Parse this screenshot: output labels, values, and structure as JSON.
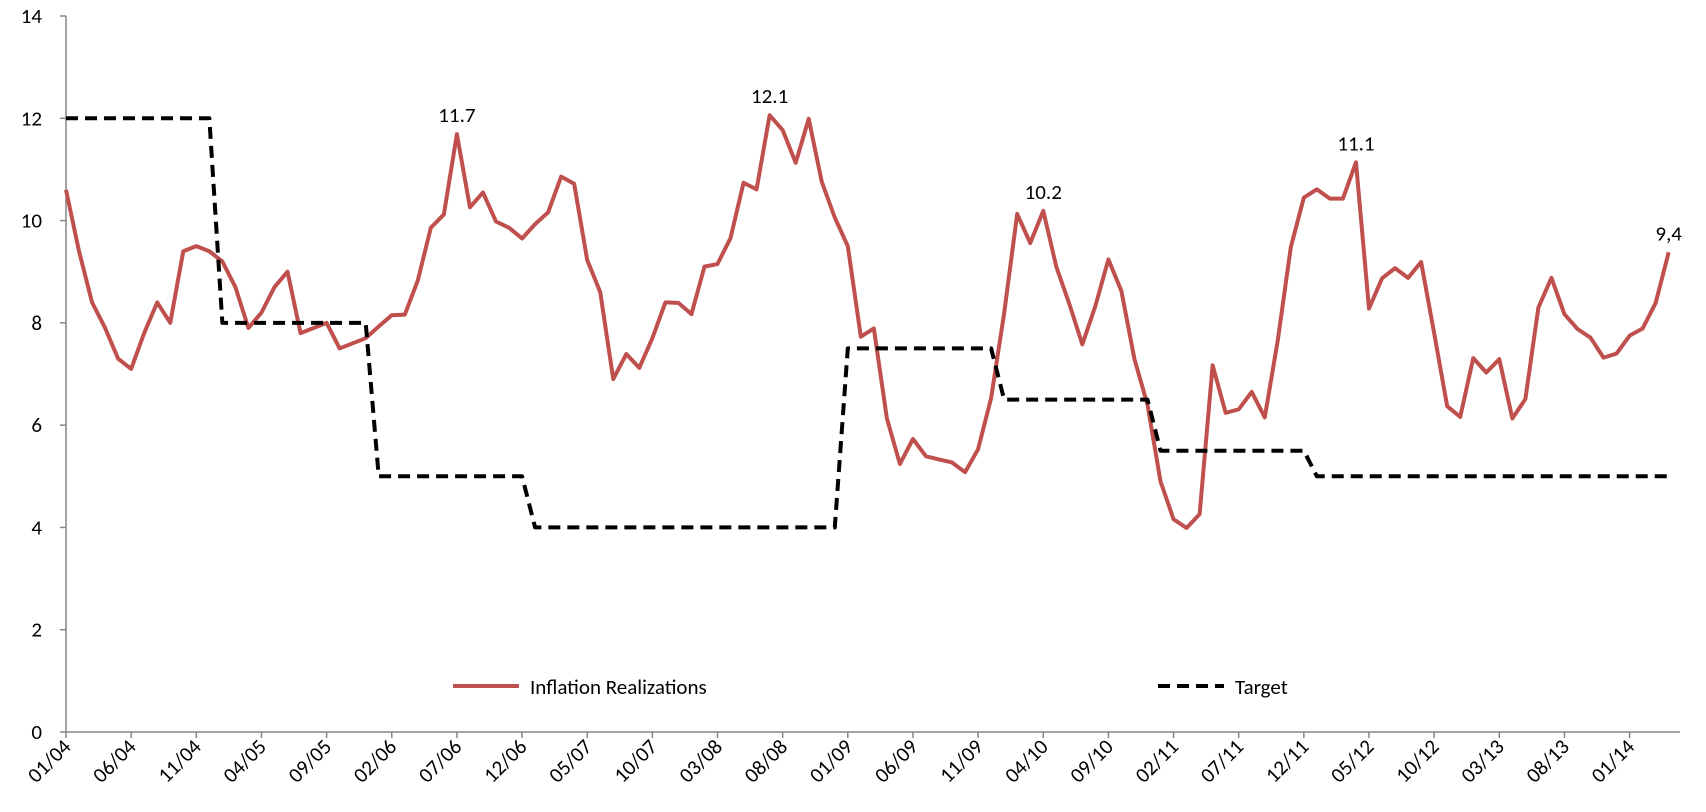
{
  "chart_data": {
    "type": "line",
    "categories": [
      "01/04",
      null,
      null,
      null,
      null,
      "06/04",
      null,
      null,
      null,
      null,
      "11/04",
      null,
      null,
      null,
      null,
      "04/05",
      null,
      null,
      null,
      null,
      "09/05",
      null,
      null,
      null,
      null,
      "02/06",
      null,
      null,
      null,
      null,
      "07/06",
      null,
      null,
      null,
      null,
      "12/06",
      null,
      null,
      null,
      null,
      "05/07",
      null,
      null,
      null,
      null,
      "10/07",
      null,
      null,
      null,
      null,
      "03/08",
      null,
      null,
      null,
      null,
      "08/08",
      null,
      null,
      null,
      null,
      "01/09",
      null,
      null,
      null,
      null,
      "06/09",
      null,
      null,
      null,
      null,
      "11/09",
      null,
      null,
      null,
      null,
      "04/10",
      null,
      null,
      null,
      null,
      "09/10",
      null,
      null,
      null,
      null,
      "02/11",
      null,
      null,
      null,
      null,
      "07/11",
      null,
      null,
      null,
      null,
      "12/11",
      null,
      null,
      null,
      null,
      "05/12",
      null,
      null,
      null,
      null,
      "10/12",
      null,
      null,
      null,
      null,
      "03/13",
      null,
      null,
      null,
      null,
      "08/13",
      null,
      null,
      null,
      null,
      "01/14",
      null,
      null,
      null
    ],
    "series": [
      {
        "name": "Inflation Realizations",
        "color": "#c0504d",
        "dash": "solid",
        "values": [
          10.6,
          9.4,
          8.4,
          7.9,
          7.3,
          7.1,
          7.8,
          8.4,
          8.0,
          9.4,
          9.5,
          9.4,
          9.2,
          8.7,
          7.9,
          8.2,
          8.7,
          9.0,
          7.8,
          7.9,
          8.0,
          7.5,
          7.6,
          7.7,
          7.93,
          8.15,
          8.16,
          8.83,
          9.86,
          10.12,
          11.69,
          10.26,
          10.55,
          9.98,
          9.86,
          9.65,
          9.93,
          10.16,
          10.86,
          10.72,
          9.23,
          8.6,
          6.9,
          7.39,
          7.12,
          7.7,
          8.4,
          8.39,
          8.17,
          9.1,
          9.15,
          9.66,
          10.74,
          10.61,
          12.06,
          11.77,
          11.13,
          11.99,
          10.76,
          10.06,
          9.5,
          7.73,
          7.89,
          6.13,
          5.24,
          5.73,
          5.39,
          5.33,
          5.27,
          5.08,
          5.53,
          6.53,
          8.19,
          10.13,
          9.56,
          10.19,
          9.1,
          8.37,
          7.58,
          8.33,
          9.24,
          8.62,
          7.29,
          6.4,
          4.9,
          4.16,
          3.99,
          4.26,
          7.17,
          6.24,
          6.31,
          6.65,
          6.15,
          7.66,
          9.48,
          10.45,
          10.61,
          10.43,
          10.43,
          11.14,
          8.28,
          8.87,
          9.07,
          8.88,
          9.19,
          7.8,
          6.37,
          6.16,
          7.31,
          7.03,
          7.29,
          6.13,
          6.51,
          8.3,
          8.88,
          8.17,
          7.88,
          7.71,
          7.32,
          7.4,
          7.75,
          7.89,
          8.39,
          9.38
        ],
        "value_labels": [
          null,
          null,
          null,
          null,
          null,
          null,
          null,
          null,
          null,
          null,
          null,
          null,
          null,
          null,
          null,
          null,
          null,
          null,
          null,
          null,
          null,
          null,
          null,
          null,
          null,
          null,
          null,
          null,
          null,
          null,
          "11.7",
          null,
          null,
          null,
          null,
          null,
          null,
          null,
          null,
          null,
          null,
          null,
          null,
          null,
          null,
          null,
          null,
          null,
          null,
          null,
          null,
          null,
          null,
          null,
          "12.1",
          null,
          null,
          null,
          null,
          null,
          null,
          null,
          null,
          null,
          null,
          null,
          null,
          null,
          null,
          null,
          null,
          null,
          null,
          null,
          null,
          "10.2",
          null,
          null,
          null,
          null,
          null,
          null,
          null,
          null,
          null,
          null,
          null,
          null,
          null,
          null,
          null,
          null,
          null,
          null,
          null,
          null,
          null,
          null,
          null,
          "11.1",
          null,
          null,
          null,
          null,
          null,
          null,
          null,
          null,
          null,
          null,
          null,
          null,
          null,
          null,
          null,
          null,
          null,
          null,
          null,
          null,
          null,
          null,
          null,
          "9,4"
        ]
      },
      {
        "name": "Target",
        "color": "#000000",
        "dash": "dashed",
        "values": [
          12,
          12,
          12,
          12,
          12,
          12,
          12,
          12,
          12,
          12,
          12,
          12,
          8,
          8,
          8,
          8,
          8,
          8,
          8,
          8,
          8,
          8,
          8,
          8,
          5,
          5,
          5,
          5,
          5,
          5,
          5,
          5,
          5,
          5,
          5,
          5,
          4,
          4,
          4,
          4,
          4,
          4,
          4,
          4,
          4,
          4,
          4,
          4,
          4,
          4,
          4,
          4,
          4,
          4,
          4,
          4,
          4,
          4,
          4,
          4,
          7.5,
          7.5,
          7.5,
          7.5,
          7.5,
          7.5,
          7.5,
          7.5,
          7.5,
          7.5,
          7.5,
          7.5,
          6.5,
          6.5,
          6.5,
          6.5,
          6.5,
          6.5,
          6.5,
          6.5,
          6.5,
          6.5,
          6.5,
          6.5,
          5.5,
          5.5,
          5.5,
          5.5,
          5.5,
          5.5,
          5.5,
          5.5,
          5.5,
          5.5,
          5.5,
          5.5,
          5,
          5,
          5,
          5,
          5,
          5,
          5,
          5,
          5,
          5,
          5,
          5,
          5,
          5,
          5,
          5,
          5,
          5,
          5,
          5,
          5,
          5,
          5,
          5,
          5,
          5,
          5,
          5
        ]
      }
    ],
    "ylim": [
      0,
      14
    ],
    "yticks": [
      0,
      2,
      4,
      6,
      8,
      10,
      12,
      14
    ],
    "grid": false,
    "legend": "bottom"
  }
}
